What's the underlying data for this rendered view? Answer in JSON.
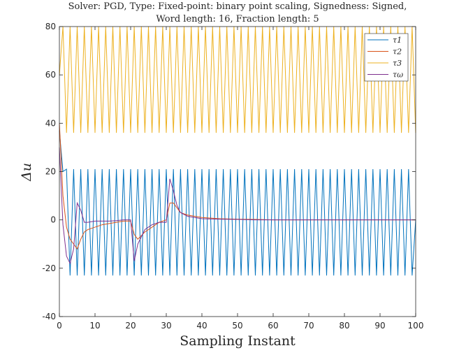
{
  "chart_data": {
    "type": "line",
    "title_lines": [
      "Solver: PGD, Type: Fixed-point: binary point scaling, Signedness: Signed,",
      "Word length: 16, Fraction length: 5"
    ],
    "xlabel": "Sampling Instant",
    "ylabel": "Δu",
    "xlim": [
      0,
      100
    ],
    "ylim": [
      -40,
      80
    ],
    "xticks": [
      0,
      10,
      20,
      30,
      40,
      50,
      60,
      70,
      80,
      90,
      100
    ],
    "yticks": [
      -40,
      -20,
      0,
      20,
      40,
      60,
      80
    ],
    "grid": false,
    "legend_position": "top-right",
    "series": [
      {
        "name": "τ1",
        "color": "#0072BD",
        "x": [
          0,
          1,
          2,
          3,
          4,
          5,
          6,
          7,
          8,
          9,
          10,
          11,
          12,
          13,
          14,
          15,
          16,
          17,
          18,
          19,
          20,
          21,
          22,
          23,
          24,
          25,
          26,
          27,
          28,
          29,
          30,
          31,
          32,
          33,
          34,
          35,
          36,
          37,
          38,
          39,
          40,
          41,
          42,
          43,
          44,
          45,
          46,
          47,
          48,
          49,
          50,
          51,
          52,
          53,
          54,
          55,
          56,
          57,
          58,
          59,
          60,
          61,
          62,
          63,
          64,
          65,
          66,
          67,
          68,
          69,
          70,
          71,
          72,
          73,
          74,
          75,
          76,
          77,
          78,
          79,
          80,
          81,
          82,
          83,
          84,
          85,
          86,
          87,
          88,
          89,
          90,
          91,
          92,
          93,
          94,
          95,
          96,
          97,
          98,
          99,
          100
        ],
        "y": [
          37,
          20,
          21,
          -23,
          21,
          -23,
          21,
          -23,
          21,
          -23,
          21,
          -23,
          21,
          -23,
          21,
          -23,
          21,
          -23,
          21,
          -23,
          21,
          -23,
          21,
          -23,
          21,
          -23,
          21,
          -23,
          21,
          -23,
          21,
          -23,
          21,
          -23,
          21,
          -23,
          21,
          -23,
          21,
          -23,
          21,
          -23,
          21,
          -23,
          21,
          -23,
          21,
          -23,
          21,
          -23,
          21,
          -23,
          21,
          -23,
          21,
          -23,
          21,
          -23,
          21,
          -23,
          21,
          -23,
          21,
          -23,
          21,
          -23,
          21,
          -23,
          21,
          -23,
          21,
          -23,
          21,
          -23,
          21,
          -23,
          21,
          -23,
          21,
          -23,
          21,
          -23,
          21,
          -23,
          21,
          -23,
          21,
          -23,
          21,
          -23,
          21,
          -23,
          21,
          -23,
          21,
          -23,
          21,
          -23,
          21,
          -23,
          0
        ]
      },
      {
        "name": "τ2",
        "color": "#D95319",
        "x": [
          0,
          1,
          2,
          3,
          4,
          5,
          6,
          7,
          8,
          10,
          12,
          14,
          16,
          18,
          20,
          21,
          22,
          24,
          26,
          28,
          30,
          31,
          32,
          33,
          34,
          36,
          38,
          40,
          45,
          50,
          55,
          60,
          100
        ],
        "y": [
          40,
          10,
          -3,
          -8,
          -10,
          -12,
          -8,
          -5,
          -4,
          -3,
          -2,
          -1.5,
          -1,
          -0.5,
          -0.5,
          -6,
          -8,
          -5,
          -3,
          -1,
          0,
          7,
          7,
          5,
          3,
          2,
          1.5,
          1,
          0.5,
          0.3,
          0.2,
          0,
          0
        ]
      },
      {
        "name": "τ3",
        "color": "#EDB120",
        "x": [
          0,
          1,
          2,
          3,
          4,
          5,
          6,
          7,
          8,
          9,
          10,
          11,
          12,
          13,
          14,
          15,
          16,
          17,
          18,
          19,
          20,
          21,
          22,
          23,
          24,
          25,
          26,
          27,
          28,
          29,
          30,
          31,
          32,
          33,
          34,
          35,
          36,
          37,
          38,
          39,
          40,
          41,
          42,
          43,
          44,
          45,
          46,
          47,
          48,
          49,
          50,
          51,
          52,
          53,
          54,
          55,
          56,
          57,
          58,
          59,
          60,
          61,
          62,
          63,
          64,
          65,
          66,
          67,
          68,
          69,
          70,
          71,
          72,
          73,
          74,
          75,
          76,
          77,
          78,
          79,
          80,
          81,
          82,
          83,
          84,
          85,
          86,
          87,
          88,
          89,
          90,
          91,
          92,
          93,
          94,
          95,
          96,
          97,
          98,
          99,
          100
        ],
        "y": [
          60,
          80,
          36,
          80,
          36,
          80,
          36,
          80,
          36,
          80,
          36,
          80,
          36,
          80,
          36,
          80,
          36,
          80,
          36,
          80,
          36,
          80,
          36,
          80,
          36,
          80,
          36,
          80,
          36,
          80,
          36,
          80,
          36,
          80,
          36,
          80,
          36,
          80,
          36,
          80,
          36,
          80,
          36,
          80,
          36,
          80,
          36,
          80,
          36,
          80,
          36,
          80,
          36,
          80,
          36,
          80,
          36,
          80,
          36,
          80,
          36,
          80,
          36,
          80,
          36,
          80,
          36,
          80,
          36,
          80,
          36,
          80,
          36,
          80,
          36,
          80,
          36,
          80,
          36,
          80,
          36,
          80,
          36,
          80,
          36,
          80,
          36,
          80,
          36,
          80,
          36,
          80,
          36,
          80,
          36,
          80,
          36,
          80,
          36,
          80,
          36
        ]
      },
      {
        "name": "τω",
        "color": "#7E2F8E",
        "x": [
          0,
          1,
          2,
          3,
          4,
          5,
          6,
          7,
          8,
          10,
          12,
          14,
          16,
          18,
          20,
          21,
          22,
          24,
          26,
          28,
          30,
          31,
          32,
          33,
          34,
          36,
          38,
          40,
          45,
          50,
          55,
          60,
          100
        ],
        "y": [
          30,
          -2,
          -15,
          -18,
          -12,
          7,
          4,
          -1,
          -1,
          -0.5,
          -0.5,
          -0.5,
          -0.3,
          0,
          0,
          -17,
          -10,
          -4,
          -2,
          -1,
          -1,
          17,
          12,
          6,
          3,
          1.5,
          1,
          0.5,
          0.3,
          0.2,
          0,
          0,
          0
        ]
      }
    ]
  }
}
